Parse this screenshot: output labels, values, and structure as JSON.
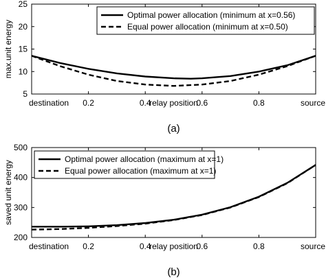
{
  "chart_data": [
    {
      "type": "line",
      "caption": "(a)",
      "xlabel": "relay position",
      "ylabel": "max.unit energy",
      "xlim": [
        0,
        1
      ],
      "ylim": [
        5,
        25
      ],
      "xticks": [
        0,
        0.2,
        0.4,
        0.6,
        0.8,
        1
      ],
      "xticklabels": [
        "destination",
        "0.2",
        "0.4",
        "0.6",
        "0.8",
        "source"
      ],
      "yticks": [
        5,
        10,
        15,
        20,
        25
      ],
      "yticklabels": [
        "5",
        "10",
        "15",
        "20",
        "25"
      ],
      "legend_position": "top-right",
      "series": [
        {
          "name": "Optimal power allocation (minimum at x=0.56)",
          "style": "solid",
          "x": [
            0,
            0.1,
            0.2,
            0.3,
            0.4,
            0.5,
            0.56,
            0.6,
            0.7,
            0.8,
            0.9,
            1.0
          ],
          "y": [
            13.5,
            11.9,
            10.6,
            9.6,
            8.9,
            8.5,
            8.4,
            8.5,
            9.0,
            10.0,
            11.4,
            13.5
          ]
        },
        {
          "name": "Equal power allocation (minimum at x=0.50)",
          "style": "dashed",
          "x": [
            0,
            0.1,
            0.2,
            0.3,
            0.4,
            0.5,
            0.6,
            0.7,
            0.8,
            0.9,
            1.0
          ],
          "y": [
            13.5,
            11.2,
            9.3,
            7.9,
            7.1,
            6.8,
            7.1,
            7.9,
            9.3,
            11.2,
            13.5
          ]
        }
      ]
    },
    {
      "type": "line",
      "caption": "(b)",
      "xlabel": "relay position",
      "ylabel": "saved unit energy",
      "xlim": [
        0,
        1
      ],
      "ylim": [
        200,
        500
      ],
      "xticks": [
        0,
        0.2,
        0.4,
        0.6,
        0.8,
        1
      ],
      "xticklabels": [
        "destination",
        "0.2",
        "0.4",
        "0.6",
        "0.8",
        "source"
      ],
      "yticks": [
        200,
        300,
        400,
        500
      ],
      "yticklabels": [
        "200",
        "300",
        "400",
        "500"
      ],
      "legend_position": "top-left",
      "series": [
        {
          "name": "Optimal power allocation (maximum at x=1)",
          "style": "solid",
          "x": [
            0,
            0.1,
            0.2,
            0.3,
            0.4,
            0.5,
            0.6,
            0.7,
            0.8,
            0.9,
            1.0
          ],
          "y": [
            236,
            236,
            237,
            241,
            248,
            259,
            276,
            301,
            336,
            382,
            442
          ]
        },
        {
          "name": "Equal power allocation (maximum at x=1)",
          "style": "dashed",
          "x": [
            0,
            0.1,
            0.2,
            0.3,
            0.4,
            0.5,
            0.6,
            0.7,
            0.8,
            0.9,
            1.0
          ],
          "y": [
            226,
            228,
            232,
            238,
            246,
            258,
            275,
            300,
            335,
            381,
            442
          ]
        }
      ]
    }
  ]
}
